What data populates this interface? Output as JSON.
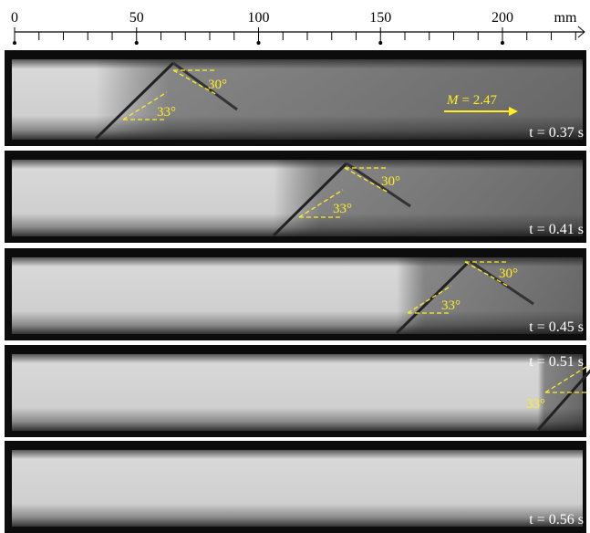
{
  "ruler": {
    "ticks": [
      "0",
      "50",
      "100",
      "150",
      "200"
    ],
    "unit": "mm"
  },
  "panels": [
    {
      "time": "t = 0.37 s",
      "angles": [
        "30°",
        "33°"
      ],
      "mach": {
        "symbol": "M",
        "value": "= 2.47"
      }
    },
    {
      "time": "t = 0.41 s",
      "angles": [
        "30°",
        "33°"
      ]
    },
    {
      "time": "t = 0.45 s",
      "angles": [
        "30°",
        "33°"
      ]
    },
    {
      "time": "t = 0.51 s",
      "angles": [
        "33°"
      ]
    },
    {
      "time": "t = 0.56 s",
      "angles": []
    }
  ]
}
